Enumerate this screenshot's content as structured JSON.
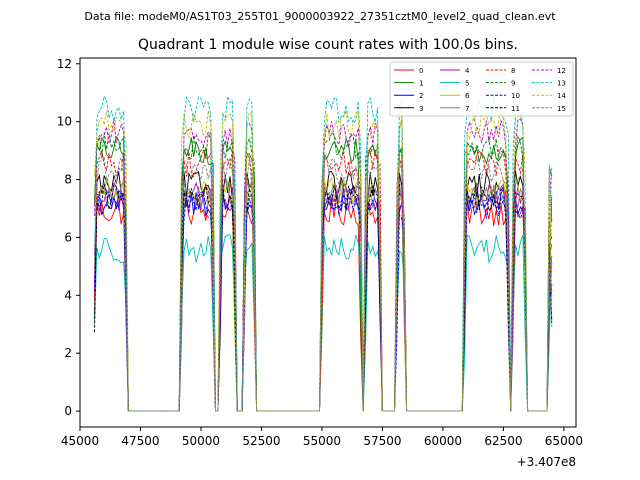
{
  "chart_data": {
    "type": "line",
    "suptitle": "Data file: modeM0/AS1T03_255T01_9000003922_27351cztM0_level2_quad_clean.evt",
    "title": "Quadrant 1 module wise count rates with 100.0s bins.",
    "xlabel": "",
    "ylabel": "",
    "x_offset_label": "+3.407e8",
    "xlim": [
      45000,
      65500
    ],
    "ylim": [
      -0.55,
      12.2
    ],
    "x_ticks": [
      45000,
      47500,
      50000,
      52500,
      55000,
      57500,
      60000,
      62500,
      65000
    ],
    "x_tick_labels": [
      "45000",
      "47500",
      "50000",
      "52500",
      "55000",
      "57500",
      "60000",
      "62500",
      "65000"
    ],
    "y_ticks": [
      0,
      2,
      4,
      6,
      8,
      10,
      12
    ],
    "y_tick_labels": [
      "0",
      "2",
      "4",
      "6",
      "8",
      "10",
      "12"
    ],
    "legend_position": "top-right",
    "legend_columns": 4,
    "observation_segments": [
      [
        45600,
        46900
      ],
      [
        49200,
        50500
      ],
      [
        50800,
        51400
      ],
      [
        51800,
        52200
      ],
      [
        55000,
        56600
      ],
      [
        56800,
        57400
      ],
      [
        58100,
        58400
      ],
      [
        60900,
        62700
      ],
      [
        62900,
        63400
      ],
      [
        64400,
        64500
      ]
    ],
    "series": [
      {
        "name": "0",
        "color": "#ff0000",
        "dash": "solid",
        "level": 6.9
      },
      {
        "name": "1",
        "color": "#008000",
        "dash": "solid",
        "level": 9.0
      },
      {
        "name": "2",
        "color": "#0000ff",
        "dash": "solid",
        "level": 7.2
      },
      {
        "name": "3",
        "color": "#000000",
        "dash": "solid",
        "level": 7.8
      },
      {
        "name": "4",
        "color": "#bf00bf",
        "dash": "solid",
        "level": 7.4
      },
      {
        "name": "5",
        "color": "#00bfbf",
        "dash": "solid",
        "level": 5.6
      },
      {
        "name": "6",
        "color": "#bfbf00",
        "dash": "solid",
        "level": 7.6
      },
      {
        "name": "7",
        "color": "#808080",
        "dash": "solid",
        "level": 7.5
      },
      {
        "name": "8",
        "color": "#ff0000",
        "dash": "dashed",
        "level": 8.6
      },
      {
        "name": "9",
        "color": "#008000",
        "dash": "dashed",
        "level": 9.2
      },
      {
        "name": "10",
        "color": "#0000ff",
        "dash": "dashed",
        "level": 7.1
      },
      {
        "name": "11",
        "color": "#000000",
        "dash": "dashed",
        "level": 7.4
      },
      {
        "name": "12",
        "color": "#bf00bf",
        "dash": "dashed",
        "level": 9.6
      },
      {
        "name": "13",
        "color": "#00bfbf",
        "dash": "dashed",
        "level": 10.4
      },
      {
        "name": "14",
        "color": "#bfbf00",
        "dash": "dashed",
        "level": 9.9
      },
      {
        "name": "15",
        "color": "#808080",
        "dash": "dashed",
        "level": 8.3
      }
    ]
  }
}
